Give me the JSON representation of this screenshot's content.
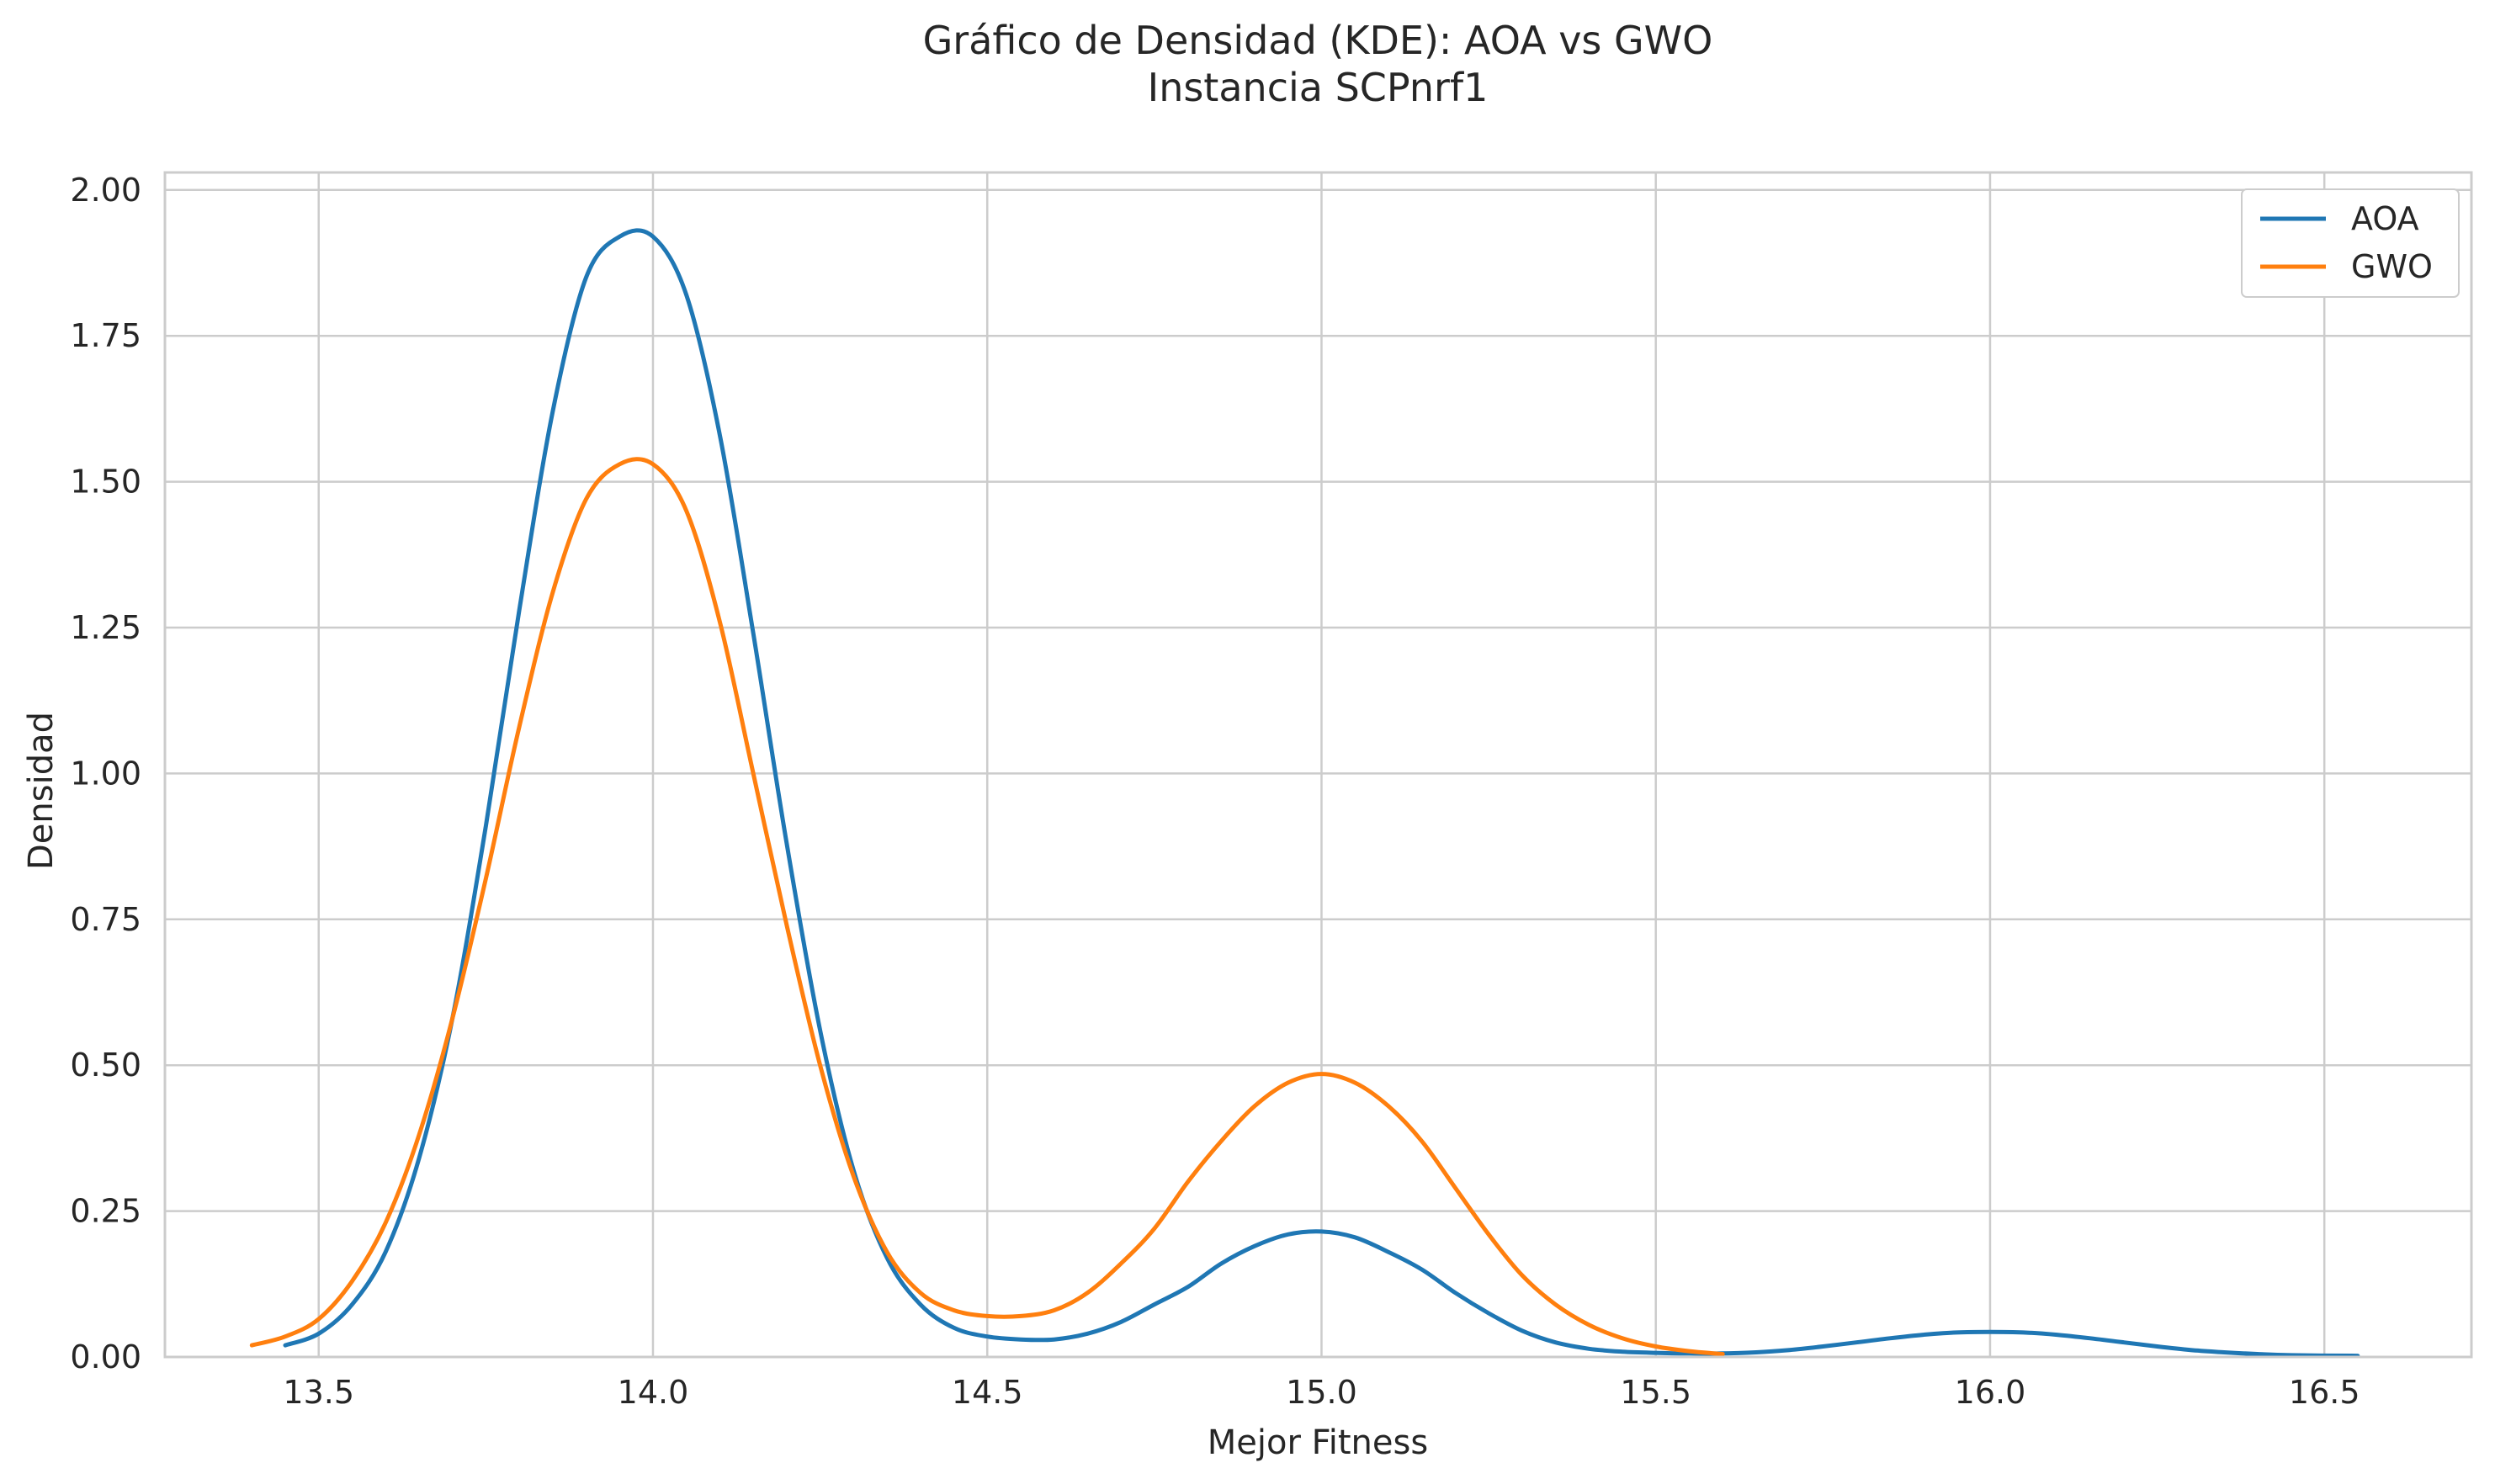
{
  "chart_data": {
    "type": "line",
    "title": "Gráfico de Densidad (KDE): AOA vs GWO",
    "subtitle": "Instancia SCPnrf1",
    "xlabel": "Mejor Fitness",
    "ylabel": "Densidad",
    "xlim": [
      13.27,
      16.72
    ],
    "ylim": [
      0,
      2.03
    ],
    "xticks": [
      13.5,
      14.0,
      14.5,
      15.0,
      15.5,
      16.0,
      16.5
    ],
    "xtick_labels": [
      "13.5",
      "14.0",
      "14.5",
      "15.0",
      "15.5",
      "16.0",
      "16.5"
    ],
    "yticks": [
      0,
      0.25,
      0.5,
      0.75,
      1.0,
      1.25,
      1.5,
      1.75,
      2.0
    ],
    "ytick_labels": [
      "0.00",
      "0.25",
      "0.50",
      "0.75",
      "1.00",
      "1.25",
      "1.50",
      "1.75",
      "2.00"
    ],
    "grid": true,
    "legend_position": "top-right",
    "series": [
      {
        "name": "AOA",
        "color": "#1f77b4",
        "x": [
          13.45,
          13.5,
          13.55,
          13.6,
          13.65,
          13.7,
          13.75,
          13.8,
          13.85,
          13.9,
          13.95,
          14.0,
          14.05,
          14.1,
          14.15,
          14.2,
          14.25,
          14.3,
          14.35,
          14.4,
          14.45,
          14.5,
          14.55,
          14.6,
          14.65,
          14.7,
          14.75,
          14.8,
          14.85,
          14.9,
          14.95,
          15.0,
          15.05,
          15.1,
          15.15,
          15.2,
          15.25,
          15.3,
          15.35,
          15.4,
          15.45,
          15.5,
          15.55,
          15.6,
          15.65,
          15.7,
          15.75,
          15.8,
          15.85,
          15.9,
          15.95,
          16.0,
          16.05,
          16.1,
          16.15,
          16.2,
          16.25,
          16.3,
          16.35,
          16.4,
          16.45,
          16.55
        ],
        "y": [
          0.02,
          0.04,
          0.09,
          0.18,
          0.34,
          0.58,
          0.91,
          1.28,
          1.62,
          1.85,
          1.92,
          1.92,
          1.82,
          1.58,
          1.24,
          0.88,
          0.56,
          0.32,
          0.17,
          0.09,
          0.05,
          0.035,
          0.03,
          0.03,
          0.04,
          0.06,
          0.09,
          0.12,
          0.16,
          0.19,
          0.21,
          0.215,
          0.205,
          0.18,
          0.15,
          0.11,
          0.075,
          0.045,
          0.025,
          0.014,
          0.009,
          0.007,
          0.006,
          0.006,
          0.008,
          0.012,
          0.018,
          0.025,
          0.032,
          0.038,
          0.042,
          0.043,
          0.042,
          0.038,
          0.032,
          0.025,
          0.018,
          0.012,
          0.008,
          0.005,
          0.003,
          0.002
        ]
      },
      {
        "name": "GWO",
        "color": "#ff7f0e",
        "x": [
          13.4,
          13.45,
          13.5,
          13.55,
          13.6,
          13.65,
          13.7,
          13.75,
          13.8,
          13.85,
          13.9,
          13.95,
          14.0,
          14.05,
          14.1,
          14.15,
          14.2,
          14.25,
          14.3,
          14.35,
          14.4,
          14.45,
          14.5,
          14.55,
          14.6,
          14.65,
          14.7,
          14.75,
          14.8,
          14.85,
          14.9,
          14.95,
          15.0,
          15.05,
          15.1,
          15.15,
          15.2,
          15.25,
          15.3,
          15.35,
          15.4,
          15.45,
          15.5,
          15.55,
          15.6
        ],
        "y": [
          0.02,
          0.035,
          0.065,
          0.13,
          0.23,
          0.38,
          0.58,
          0.82,
          1.08,
          1.31,
          1.47,
          1.53,
          1.53,
          1.45,
          1.26,
          1.0,
          0.74,
          0.5,
          0.31,
          0.18,
          0.11,
          0.08,
          0.07,
          0.07,
          0.08,
          0.11,
          0.16,
          0.22,
          0.3,
          0.37,
          0.43,
          0.47,
          0.485,
          0.47,
          0.43,
          0.37,
          0.29,
          0.21,
          0.14,
          0.09,
          0.055,
          0.032,
          0.018,
          0.01,
          0.005
        ]
      }
    ]
  }
}
